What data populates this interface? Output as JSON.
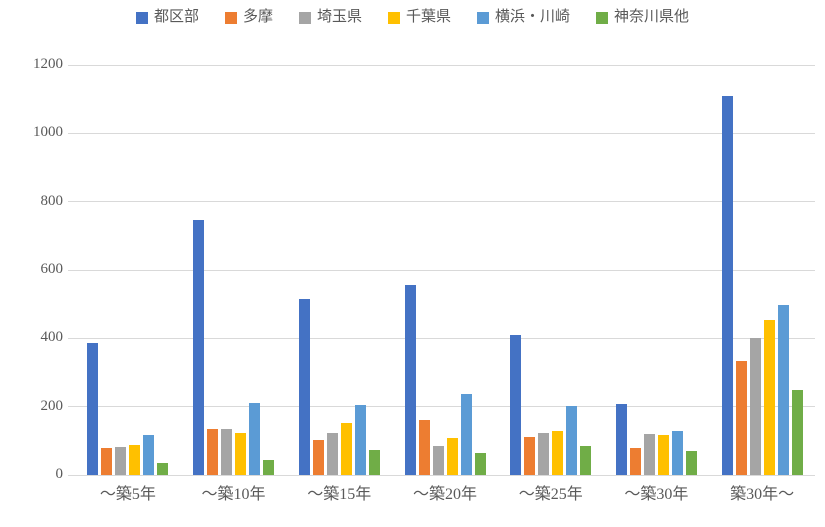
{
  "chart_data": {
    "type": "bar",
    "title": "",
    "categories": [
      "～築5年",
      "～築10年",
      "～築15年",
      "～築20年",
      "～築25年",
      "～築30年",
      "築30年～"
    ],
    "series": [
      {
        "name": "都区部",
        "color": "#4472C4",
        "values": [
          385,
          745,
          515,
          555,
          410,
          207,
          1108
        ]
      },
      {
        "name": "多摩",
        "color": "#ED7D31",
        "values": [
          78,
          135,
          102,
          160,
          110,
          80,
          334
        ]
      },
      {
        "name": "埼玉県",
        "color": "#A5A5A5",
        "values": [
          83,
          135,
          122,
          85,
          122,
          120,
          400
        ]
      },
      {
        "name": "千葉県",
        "color": "#FFC000",
        "values": [
          87,
          123,
          153,
          107,
          130,
          118,
          453
        ]
      },
      {
        "name": "横浜・川崎",
        "color": "#5B9BD5",
        "values": [
          117,
          212,
          204,
          238,
          202,
          128,
          497
        ]
      },
      {
        "name": "神奈川県他",
        "color": "#70AD47",
        "values": [
          34,
          43,
          72,
          63,
          85,
          69,
          248
        ]
      }
    ],
    "xlabel": "",
    "ylabel": "",
    "ylim": [
      0,
      1200
    ],
    "ytick_step": 200,
    "ytick_labels": [
      "0",
      "200",
      "400",
      "600",
      "800",
      "1000",
      "1200"
    ],
    "grid": true,
    "legend_position": "top",
    "gridline_color": "#D9D9D9",
    "label_color": "#595959"
  }
}
